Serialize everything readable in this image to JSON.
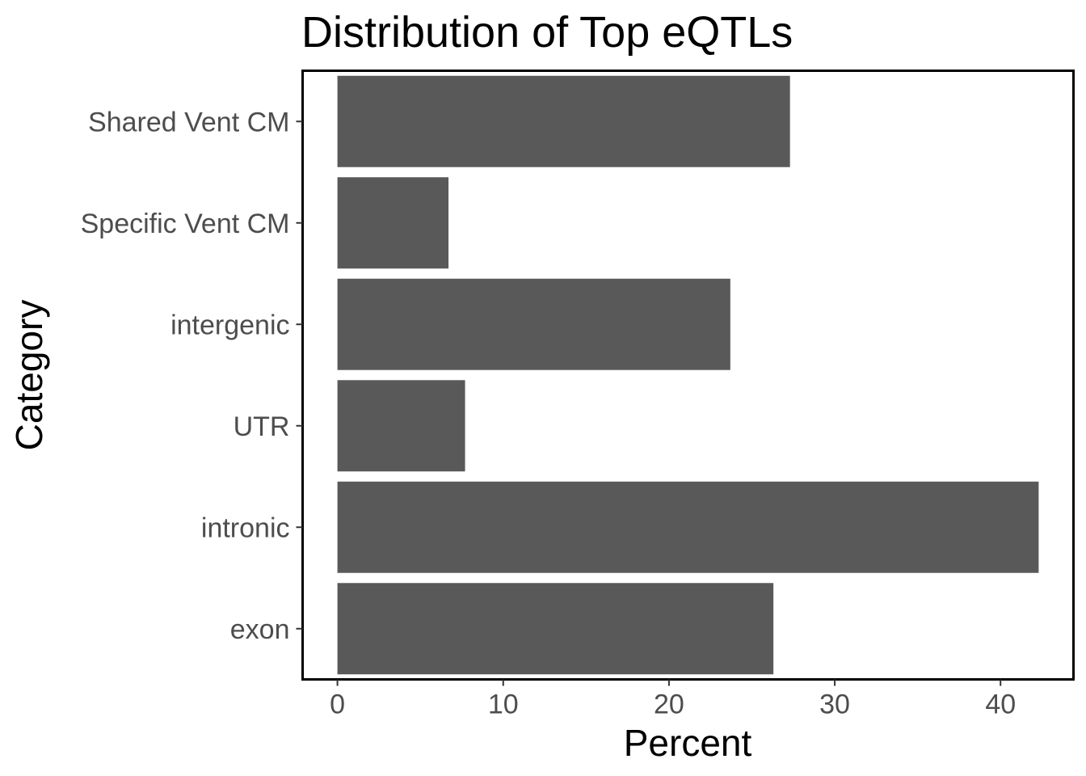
{
  "chart_data": {
    "type": "bar",
    "orientation": "horizontal",
    "title": "Distribution of Top eQTLs",
    "xlabel": "Percent",
    "ylabel": "Category",
    "categories": [
      "Shared Vent CM",
      "Specific Vent CM",
      "intergenic",
      "UTR",
      "intronic",
      "exon"
    ],
    "values": [
      27.3,
      6.7,
      23.7,
      7.7,
      42.3,
      26.3
    ],
    "xlim": [
      -2.1,
      44.4
    ],
    "xticks": [
      "0",
      "10",
      "20",
      "30",
      "40"
    ],
    "grid": false,
    "legend": "none",
    "colors": {
      "bar": "#595959",
      "panel_border": "#000000",
      "tick_label": "#4d4d4d"
    }
  }
}
